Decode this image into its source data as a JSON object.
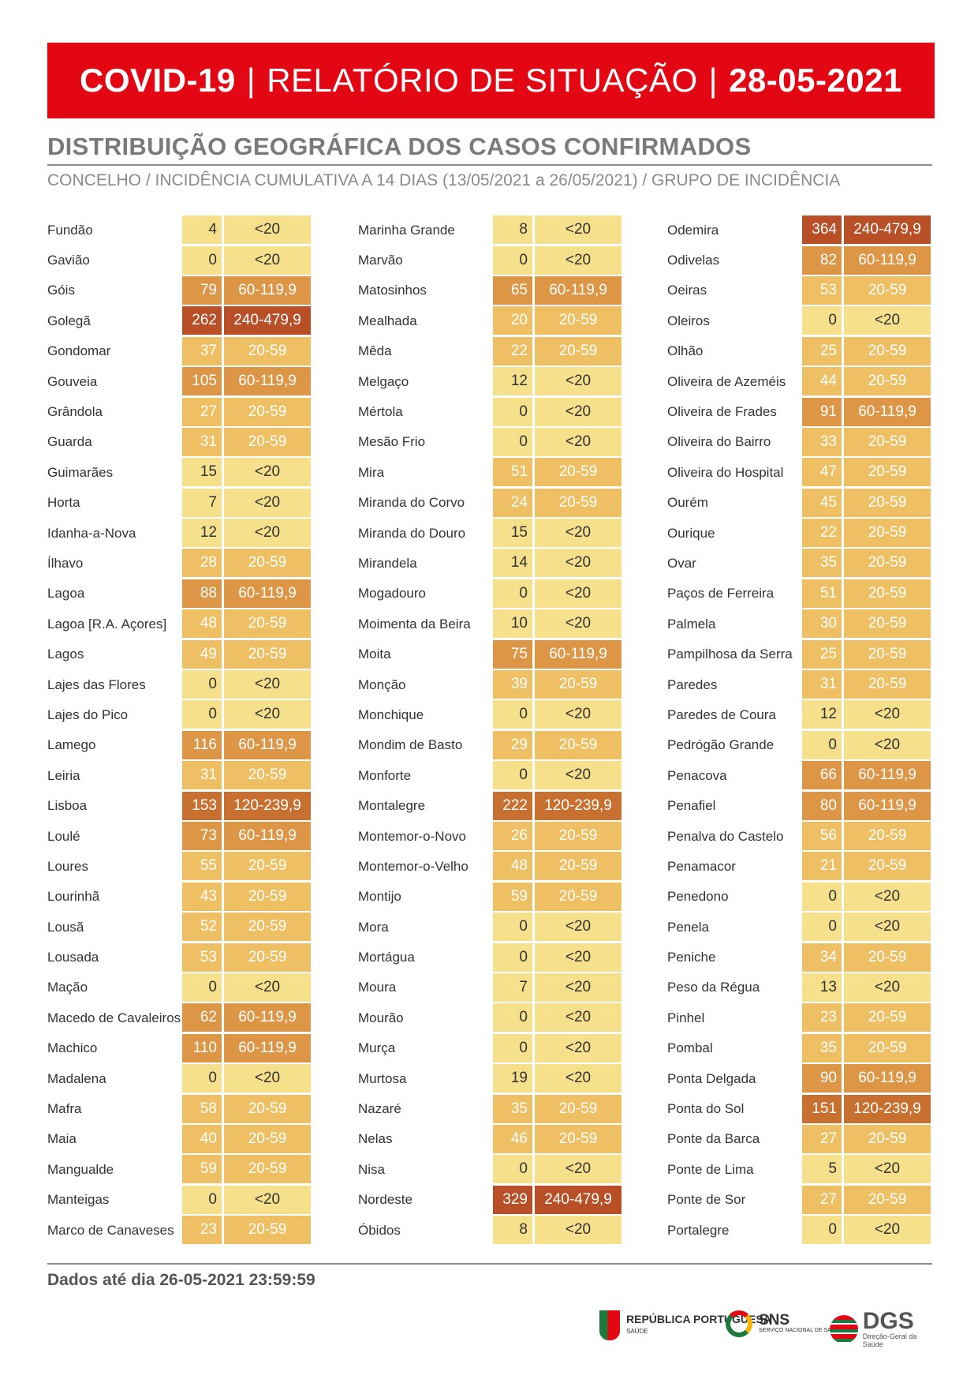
{
  "header": {
    "title_left": "COVID-19",
    "title_mid": "RELATÓRIO DE SITUAÇÃO",
    "title_date": "28-05-2021",
    "separator": "|"
  },
  "section": {
    "title": "DISTRIBUIÇÃO GEOGRÁFICA DOS CASOS CONFIRMADOS",
    "subtitle": "CONCELHO / INCIDÊNCIA CUMULATIVA A 14 DIAS (13/05/2021 a 26/05/2021) / GRUPO DE INCIDÊNCIA"
  },
  "colors": {
    "<20": "#f6e08c",
    "20-59": "#eec063",
    "60-119,9": "#dd9646",
    "120-239,9": "#c8702f",
    "240-479,9": "#b94f27",
    "banner": "#e30613"
  },
  "columns": [
    [
      {
        "name": "Fundão",
        "value": "4",
        "group": "<20"
      },
      {
        "name": "Gavião",
        "value": "0",
        "group": "<20"
      },
      {
        "name": "Góis",
        "value": "79",
        "group": "60-119,9"
      },
      {
        "name": "Golegã",
        "value": "262",
        "group": "240-479,9"
      },
      {
        "name": "Gondomar",
        "value": "37",
        "group": "20-59"
      },
      {
        "name": "Gouveia",
        "value": "105",
        "group": "60-119,9"
      },
      {
        "name": "Grândola",
        "value": "27",
        "group": "20-59"
      },
      {
        "name": "Guarda",
        "value": "31",
        "group": "20-59"
      },
      {
        "name": "Guimarães",
        "value": "15",
        "group": "<20"
      },
      {
        "name": "Horta",
        "value": "7",
        "group": "<20"
      },
      {
        "name": "Idanha-a-Nova",
        "value": "12",
        "group": "<20"
      },
      {
        "name": "Ílhavo",
        "value": "28",
        "group": "20-59"
      },
      {
        "name": "Lagoa",
        "value": "88",
        "group": "60-119,9"
      },
      {
        "name": "Lagoa [R.A. Açores]",
        "value": "48",
        "group": "20-59"
      },
      {
        "name": "Lagos",
        "value": "49",
        "group": "20-59"
      },
      {
        "name": "Lajes das Flores",
        "value": "0",
        "group": "<20"
      },
      {
        "name": "Lajes do Pico",
        "value": "0",
        "group": "<20"
      },
      {
        "name": "Lamego",
        "value": "116",
        "group": "60-119,9"
      },
      {
        "name": "Leiria",
        "value": "31",
        "group": "20-59"
      },
      {
        "name": "Lisboa",
        "value": "153",
        "group": "120-239,9"
      },
      {
        "name": "Loulé",
        "value": "73",
        "group": "60-119,9"
      },
      {
        "name": "Loures",
        "value": "55",
        "group": "20-59"
      },
      {
        "name": "Lourinhã",
        "value": "43",
        "group": "20-59"
      },
      {
        "name": "Lousã",
        "value": "52",
        "group": "20-59"
      },
      {
        "name": "Lousada",
        "value": "53",
        "group": "20-59"
      },
      {
        "name": "Mação",
        "value": "0",
        "group": "<20"
      },
      {
        "name": "Macedo de Cavaleiros",
        "value": "62",
        "group": "60-119,9"
      },
      {
        "name": "Machico",
        "value": "110",
        "group": "60-119,9"
      },
      {
        "name": "Madalena",
        "value": "0",
        "group": "<20"
      },
      {
        "name": "Mafra",
        "value": "58",
        "group": "20-59"
      },
      {
        "name": "Maia",
        "value": "40",
        "group": "20-59"
      },
      {
        "name": "Mangualde",
        "value": "59",
        "group": "20-59"
      },
      {
        "name": "Manteigas",
        "value": "0",
        "group": "<20"
      },
      {
        "name": "Marco de Canaveses",
        "value": "23",
        "group": "20-59"
      }
    ],
    [
      {
        "name": "Marinha Grande",
        "value": "8",
        "group": "<20"
      },
      {
        "name": "Marvão",
        "value": "0",
        "group": "<20"
      },
      {
        "name": "Matosinhos",
        "value": "65",
        "group": "60-119,9"
      },
      {
        "name": "Mealhada",
        "value": "20",
        "group": "20-59"
      },
      {
        "name": "Mêda",
        "value": "22",
        "group": "20-59"
      },
      {
        "name": "Melgaço",
        "value": "12",
        "group": "<20"
      },
      {
        "name": "Mértola",
        "value": "0",
        "group": "<20"
      },
      {
        "name": "Mesão Frio",
        "value": "0",
        "group": "<20"
      },
      {
        "name": "Mira",
        "value": "51",
        "group": "20-59"
      },
      {
        "name": "Miranda do Corvo",
        "value": "24",
        "group": "20-59"
      },
      {
        "name": "Miranda do Douro",
        "value": "15",
        "group": "<20"
      },
      {
        "name": "Mirandela",
        "value": "14",
        "group": "<20"
      },
      {
        "name": "Mogadouro",
        "value": "0",
        "group": "<20"
      },
      {
        "name": "Moimenta da Beira",
        "value": "10",
        "group": "<20"
      },
      {
        "name": "Moita",
        "value": "75",
        "group": "60-119,9"
      },
      {
        "name": "Monção",
        "value": "39",
        "group": "20-59"
      },
      {
        "name": "Monchique",
        "value": "0",
        "group": "<20"
      },
      {
        "name": "Mondim de Basto",
        "value": "29",
        "group": "20-59"
      },
      {
        "name": "Monforte",
        "value": "0",
        "group": "<20"
      },
      {
        "name": "Montalegre",
        "value": "222",
        "group": "120-239,9"
      },
      {
        "name": "Montemor-o-Novo",
        "value": "26",
        "group": "20-59"
      },
      {
        "name": "Montemor-o-Velho",
        "value": "48",
        "group": "20-59"
      },
      {
        "name": "Montijo",
        "value": "59",
        "group": "20-59"
      },
      {
        "name": "Mora",
        "value": "0",
        "group": "<20"
      },
      {
        "name": "Mortágua",
        "value": "0",
        "group": "<20"
      },
      {
        "name": "Moura",
        "value": "7",
        "group": "<20"
      },
      {
        "name": "Mourão",
        "value": "0",
        "group": "<20"
      },
      {
        "name": "Murça",
        "value": "0",
        "group": "<20"
      },
      {
        "name": "Murtosa",
        "value": "19",
        "group": "<20"
      },
      {
        "name": "Nazaré",
        "value": "35",
        "group": "20-59"
      },
      {
        "name": "Nelas",
        "value": "46",
        "group": "20-59"
      },
      {
        "name": "Nisa",
        "value": "0",
        "group": "<20"
      },
      {
        "name": "Nordeste",
        "value": "329",
        "group": "240-479,9"
      },
      {
        "name": "Óbidos",
        "value": "8",
        "group": "<20"
      }
    ],
    [
      {
        "name": "Odemira",
        "value": "364",
        "group": "240-479,9"
      },
      {
        "name": "Odivelas",
        "value": "82",
        "group": "60-119,9"
      },
      {
        "name": "Oeiras",
        "value": "53",
        "group": "20-59"
      },
      {
        "name": "Oleiros",
        "value": "0",
        "group": "<20"
      },
      {
        "name": "Olhão",
        "value": "25",
        "group": "20-59"
      },
      {
        "name": "Oliveira de Azeméis",
        "value": "44",
        "group": "20-59"
      },
      {
        "name": "Oliveira de Frades",
        "value": "91",
        "group": "60-119,9"
      },
      {
        "name": "Oliveira do Bairro",
        "value": "33",
        "group": "20-59"
      },
      {
        "name": "Oliveira do Hospital",
        "value": "47",
        "group": "20-59"
      },
      {
        "name": "Ourém",
        "value": "45",
        "group": "20-59"
      },
      {
        "name": "Ourique",
        "value": "22",
        "group": "20-59"
      },
      {
        "name": "Ovar",
        "value": "35",
        "group": "20-59"
      },
      {
        "name": "Paços de Ferreira",
        "value": "51",
        "group": "20-59"
      },
      {
        "name": "Palmela",
        "value": "30",
        "group": "20-59"
      },
      {
        "name": "Pampilhosa da Serra",
        "value": "25",
        "group": "20-59"
      },
      {
        "name": "Paredes",
        "value": "31",
        "group": "20-59"
      },
      {
        "name": "Paredes de Coura",
        "value": "12",
        "group": "<20"
      },
      {
        "name": "Pedrógão Grande",
        "value": "0",
        "group": "<20"
      },
      {
        "name": "Penacova",
        "value": "66",
        "group": "60-119,9"
      },
      {
        "name": "Penafiel",
        "value": "80",
        "group": "60-119,9"
      },
      {
        "name": "Penalva do Castelo",
        "value": "56",
        "group": "20-59"
      },
      {
        "name": "Penamacor",
        "value": "21",
        "group": "20-59"
      },
      {
        "name": "Penedono",
        "value": "0",
        "group": "<20"
      },
      {
        "name": "Penela",
        "value": "0",
        "group": "<20"
      },
      {
        "name": "Peniche",
        "value": "34",
        "group": "20-59"
      },
      {
        "name": "Peso da Régua",
        "value": "13",
        "group": "<20"
      },
      {
        "name": "Pinhel",
        "value": "23",
        "group": "20-59"
      },
      {
        "name": "Pombal",
        "value": "35",
        "group": "20-59"
      },
      {
        "name": "Ponta Delgada",
        "value": "90",
        "group": "60-119,9"
      },
      {
        "name": "Ponta do Sol",
        "value": "151",
        "group": "120-239,9"
      },
      {
        "name": "Ponte da Barca",
        "value": "27",
        "group": "20-59"
      },
      {
        "name": "Ponte de Lima",
        "value": "5",
        "group": "<20"
      },
      {
        "name": "Ponte de Sor",
        "value": "27",
        "group": "20-59"
      },
      {
        "name": "Portalegre",
        "value": "0",
        "group": "<20"
      }
    ]
  ],
  "footer": {
    "data_note": "Dados até dia 26-05-2021 23:59:59"
  },
  "logos": {
    "republica": "REPÚBLICA PORTUGUESA",
    "republica_sub": "SAÚDE",
    "sns": "SNS",
    "sns_sub": "SERVIÇO NACIONAL DE SAÚDE",
    "dgs": "DGS",
    "dgs_sub": "Direção-Geral da Saúde"
  }
}
